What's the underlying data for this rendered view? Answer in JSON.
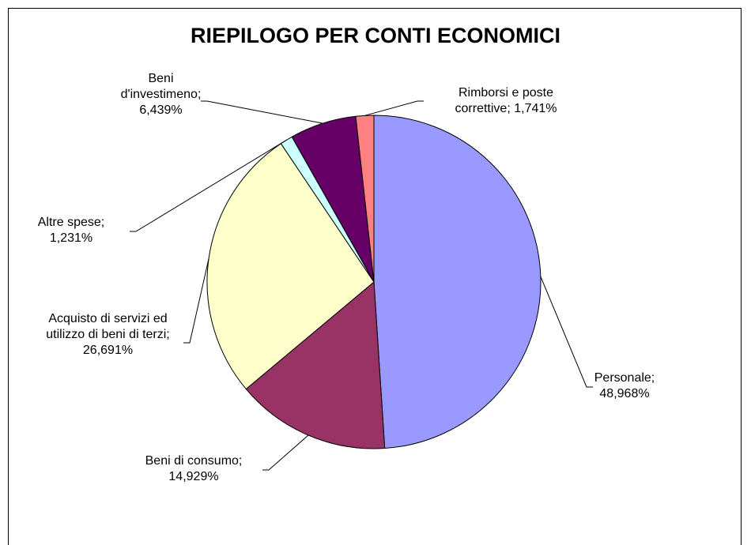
{
  "chart_data": {
    "type": "pie",
    "title": "RIEPILOGO PER CONTI ECONOMICI",
    "categories": [
      "Personale;",
      "Beni di consumo;",
      "Acquisto di servizi ed utilizzo di beni di terzi;",
      "Altre spese;",
      "Beni d'investimeno;",
      "Rimborsi e poste correttive;"
    ],
    "values": [
      48.968,
      14.929,
      26.691,
      1.231,
      6.439,
      1.741
    ],
    "value_labels": [
      "48,968%",
      "14,929%",
      "26,691%",
      "1,231%",
      "6,439%",
      "1,741%"
    ],
    "colors": [
      "#9999ff",
      "#993366",
      "#ffffcc",
      "#ccffff",
      "#660066",
      "#ff8080"
    ]
  }
}
